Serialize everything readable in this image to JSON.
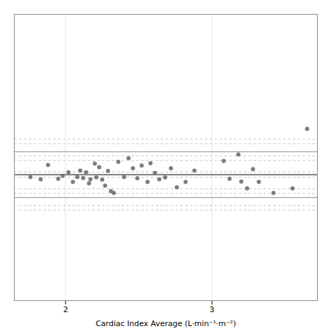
{
  "chart_data": {
    "type": "scatter",
    "xlabel": "Cardiac Index Average (L·min⁻¹·m⁻²)",
    "x": [
      1.76,
      1.83,
      1.88,
      1.95,
      1.98,
      2.02,
      2.05,
      2.08,
      2.1,
      2.12,
      2.14,
      2.16,
      2.17,
      2.2,
      2.21,
      2.23,
      2.25,
      2.27,
      2.29,
      2.31,
      2.33,
      2.36,
      2.4,
      2.43,
      2.46,
      2.49,
      2.52,
      2.56,
      2.58,
      2.61,
      2.64,
      2.68,
      2.72,
      2.76,
      2.82,
      2.88,
      3.08,
      3.12,
      3.18,
      3.2,
      3.24,
      3.28,
      3.32,
      3.42,
      3.55,
      3.65
    ],
    "values": [
      -0.01,
      -0.02,
      0.042,
      -0.018,
      -0.005,
      0.01,
      -0.032,
      -0.01,
      0.018,
      -0.015,
      0.01,
      -0.038,
      -0.02,
      0.048,
      -0.012,
      0.032,
      -0.022,
      -0.048,
      0.016,
      -0.072,
      -0.08,
      0.056,
      -0.01,
      0.072,
      0.028,
      -0.016,
      0.04,
      -0.032,
      0.05,
      0.008,
      -0.02,
      -0.012,
      0.028,
      -0.055,
      -0.032,
      0.018,
      0.06,
      -0.018,
      0.088,
      -0.03,
      -0.06,
      0.024,
      -0.032,
      -0.08,
      -0.06,
      0.2
    ],
    "color": "#666666",
    "xlim": [
      1.65,
      3.72
    ],
    "ylim": [
      -0.55,
      0.7
    ],
    "xticks": [
      2,
      3
    ],
    "yticks": [],
    "tick_labels": "x",
    "grid": true,
    "marker": "circle",
    "mean_line": 0.0,
    "limits_of_agreement": [
      0.1,
      -0.1
    ],
    "confidence_lines": [
      0.155,
      0.135,
      0.062,
      0.082,
      -0.062,
      -0.082,
      -0.155,
      -0.135,
      0.012,
      -0.012
    ],
    "line_color": "#888888",
    "dashed_color": "#bbbbbb"
  }
}
